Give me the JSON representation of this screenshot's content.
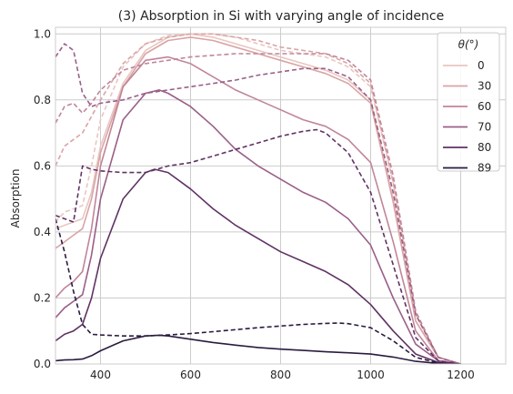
{
  "chart_data": {
    "type": "line",
    "title": "(3) Absorption in Si with varying angle of incidence",
    "xlabel": "",
    "ylabel": "Absorption",
    "xlim": [
      300,
      1300
    ],
    "ylim": [
      0,
      1.02
    ],
    "xticks": [
      400,
      600,
      800,
      1000,
      1200
    ],
    "yticks": [
      0.0,
      0.2,
      0.4,
      0.6,
      0.8,
      1.0
    ],
    "ytick_labels": [
      "0.0",
      "0.2",
      "0.4",
      "0.6",
      "0.8",
      "1.0"
    ],
    "grid": true,
    "legend": {
      "title": "θ(°)",
      "placement": "top-right",
      "entries": [
        "0",
        "30",
        "60",
        "70",
        "80",
        "89"
      ]
    },
    "series": [
      {
        "name": "0",
        "color": "#e9c6c0",
        "style": "solid",
        "x": [
          300,
          320,
          340,
          360,
          380,
          400,
          450,
          500,
          550,
          600,
          650,
          700,
          750,
          800,
          850,
          900,
          950,
          1000,
          1050,
          1100,
          1150,
          1200
        ],
        "y": [
          0.41,
          0.42,
          0.43,
          0.44,
          0.52,
          0.66,
          0.85,
          0.95,
          0.99,
          1.0,
          0.99,
          0.97,
          0.95,
          0.93,
          0.91,
          0.89,
          0.86,
          0.8,
          0.5,
          0.13,
          0.02,
          0.0
        ]
      },
      {
        "name": "0",
        "color": "#e9c6c0",
        "style": "dashed",
        "x": [
          300,
          320,
          340,
          360,
          380,
          400,
          450,
          500,
          550,
          600,
          650,
          700,
          750,
          800,
          850,
          900,
          950,
          1000,
          1050,
          1100,
          1150,
          1200
        ],
        "y": [
          0.43,
          0.46,
          0.47,
          0.48,
          0.6,
          0.74,
          0.9,
          0.97,
          0.995,
          1.0,
          1.0,
          0.99,
          0.97,
          0.95,
          0.94,
          0.93,
          0.9,
          0.84,
          0.55,
          0.15,
          0.02,
          0.0
        ]
      },
      {
        "name": "30",
        "color": "#d9a4a6",
        "style": "solid",
        "x": [
          300,
          320,
          340,
          360,
          380,
          400,
          450,
          500,
          550,
          600,
          650,
          700,
          750,
          800,
          850,
          900,
          950,
          1000,
          1050,
          1100,
          1150,
          1200
        ],
        "y": [
          0.35,
          0.37,
          0.39,
          0.41,
          0.5,
          0.64,
          0.84,
          0.94,
          0.98,
          0.99,
          0.98,
          0.96,
          0.94,
          0.92,
          0.9,
          0.88,
          0.85,
          0.79,
          0.49,
          0.13,
          0.02,
          0.0
        ]
      },
      {
        "name": "30",
        "color": "#d9a4a6",
        "style": "dashed",
        "x": [
          300,
          320,
          340,
          360,
          380,
          400,
          450,
          500,
          550,
          600,
          650,
          700,
          750,
          800,
          850,
          900,
          950,
          1000,
          1050,
          1100,
          1150,
          1200
        ],
        "y": [
          0.6,
          0.66,
          0.68,
          0.7,
          0.75,
          0.8,
          0.91,
          0.97,
          0.99,
          1.0,
          1.0,
          0.99,
          0.98,
          0.96,
          0.95,
          0.94,
          0.91,
          0.85,
          0.55,
          0.15,
          0.02,
          0.0
        ]
      },
      {
        "name": "60",
        "color": "#c0859a",
        "style": "solid",
        "x": [
          300,
          320,
          340,
          360,
          380,
          400,
          450,
          500,
          550,
          600,
          650,
          700,
          750,
          800,
          850,
          900,
          950,
          1000,
          1050,
          1100,
          1150,
          1200
        ],
        "y": [
          0.2,
          0.23,
          0.25,
          0.28,
          0.41,
          0.6,
          0.84,
          0.92,
          0.93,
          0.91,
          0.87,
          0.83,
          0.8,
          0.77,
          0.74,
          0.72,
          0.68,
          0.61,
          0.37,
          0.1,
          0.01,
          0.0
        ]
      },
      {
        "name": "60",
        "color": "#c0859a",
        "style": "dashed",
        "x": [
          300,
          320,
          340,
          360,
          380,
          400,
          450,
          500,
          550,
          600,
          650,
          700,
          750,
          800,
          850,
          900,
          950,
          1000,
          1050,
          1100,
          1150,
          1200
        ],
        "y": [
          0.73,
          0.78,
          0.79,
          0.76,
          0.79,
          0.83,
          0.89,
          0.91,
          0.92,
          0.93,
          0.935,
          0.94,
          0.94,
          0.94,
          0.94,
          0.94,
          0.92,
          0.86,
          0.57,
          0.16,
          0.02,
          0.0
        ]
      },
      {
        "name": "70",
        "color": "#9a5f88",
        "style": "solid",
        "x": [
          300,
          320,
          340,
          360,
          380,
          400,
          450,
          500,
          530,
          550,
          600,
          650,
          700,
          750,
          800,
          850,
          900,
          950,
          1000,
          1050,
          1100,
          1150,
          1200
        ],
        "y": [
          0.14,
          0.17,
          0.19,
          0.21,
          0.33,
          0.5,
          0.74,
          0.82,
          0.83,
          0.82,
          0.78,
          0.72,
          0.65,
          0.6,
          0.56,
          0.52,
          0.49,
          0.44,
          0.36,
          0.2,
          0.06,
          0.01,
          0.0
        ]
      },
      {
        "name": "70",
        "color": "#9a5f88",
        "style": "dashed",
        "x": [
          300,
          320,
          340,
          360,
          380,
          400,
          450,
          500,
          550,
          600,
          650,
          700,
          750,
          800,
          850,
          900,
          950,
          1000,
          1050,
          1100,
          1150,
          1200
        ],
        "y": [
          0.93,
          0.97,
          0.95,
          0.82,
          0.78,
          0.79,
          0.8,
          0.82,
          0.83,
          0.84,
          0.85,
          0.86,
          0.875,
          0.885,
          0.895,
          0.895,
          0.87,
          0.8,
          0.52,
          0.15,
          0.02,
          0.0
        ]
      },
      {
        "name": "80",
        "color": "#5f3263",
        "style": "solid",
        "x": [
          300,
          320,
          340,
          360,
          380,
          400,
          450,
          500,
          520,
          550,
          600,
          650,
          700,
          750,
          800,
          850,
          900,
          950,
          1000,
          1050,
          1100,
          1150,
          1200
        ],
        "y": [
          0.07,
          0.09,
          0.1,
          0.12,
          0.2,
          0.32,
          0.5,
          0.58,
          0.59,
          0.58,
          0.53,
          0.47,
          0.42,
          0.38,
          0.34,
          0.31,
          0.28,
          0.24,
          0.18,
          0.1,
          0.03,
          0.005,
          0.0
        ]
      },
      {
        "name": "80",
        "color": "#5f3263",
        "style": "dashed",
        "x": [
          300,
          320,
          340,
          360,
          380,
          400,
          450,
          500,
          550,
          600,
          650,
          700,
          750,
          800,
          850,
          880,
          900,
          950,
          1000,
          1050,
          1100,
          1150,
          1200
        ],
        "y": [
          0.45,
          0.44,
          0.43,
          0.6,
          0.59,
          0.585,
          0.58,
          0.58,
          0.6,
          0.61,
          0.63,
          0.65,
          0.67,
          0.69,
          0.705,
          0.71,
          0.7,
          0.64,
          0.52,
          0.3,
          0.08,
          0.01,
          0.0
        ]
      },
      {
        "name": "89",
        "color": "#2b1a40",
        "style": "solid",
        "x": [
          300,
          320,
          340,
          360,
          380,
          400,
          450,
          500,
          530,
          550,
          600,
          650,
          700,
          750,
          800,
          850,
          900,
          950,
          1000,
          1050,
          1100,
          1150,
          1200
        ],
        "y": [
          0.01,
          0.012,
          0.013,
          0.015,
          0.025,
          0.04,
          0.07,
          0.085,
          0.087,
          0.085,
          0.075,
          0.065,
          0.057,
          0.05,
          0.045,
          0.041,
          0.037,
          0.034,
          0.03,
          0.021,
          0.008,
          0.002,
          0.0
        ]
      },
      {
        "name": "89",
        "color": "#2b1a40",
        "style": "dashed",
        "x": [
          300,
          320,
          340,
          360,
          380,
          400,
          450,
          500,
          550,
          600,
          650,
          700,
          750,
          800,
          850,
          900,
          930,
          950,
          1000,
          1050,
          1100,
          1150,
          1200
        ],
        "y": [
          0.44,
          0.34,
          0.22,
          0.12,
          0.09,
          0.088,
          0.085,
          0.085,
          0.088,
          0.092,
          0.098,
          0.104,
          0.11,
          0.115,
          0.12,
          0.123,
          0.124,
          0.122,
          0.11,
          0.07,
          0.02,
          0.003,
          0.0
        ]
      }
    ]
  }
}
